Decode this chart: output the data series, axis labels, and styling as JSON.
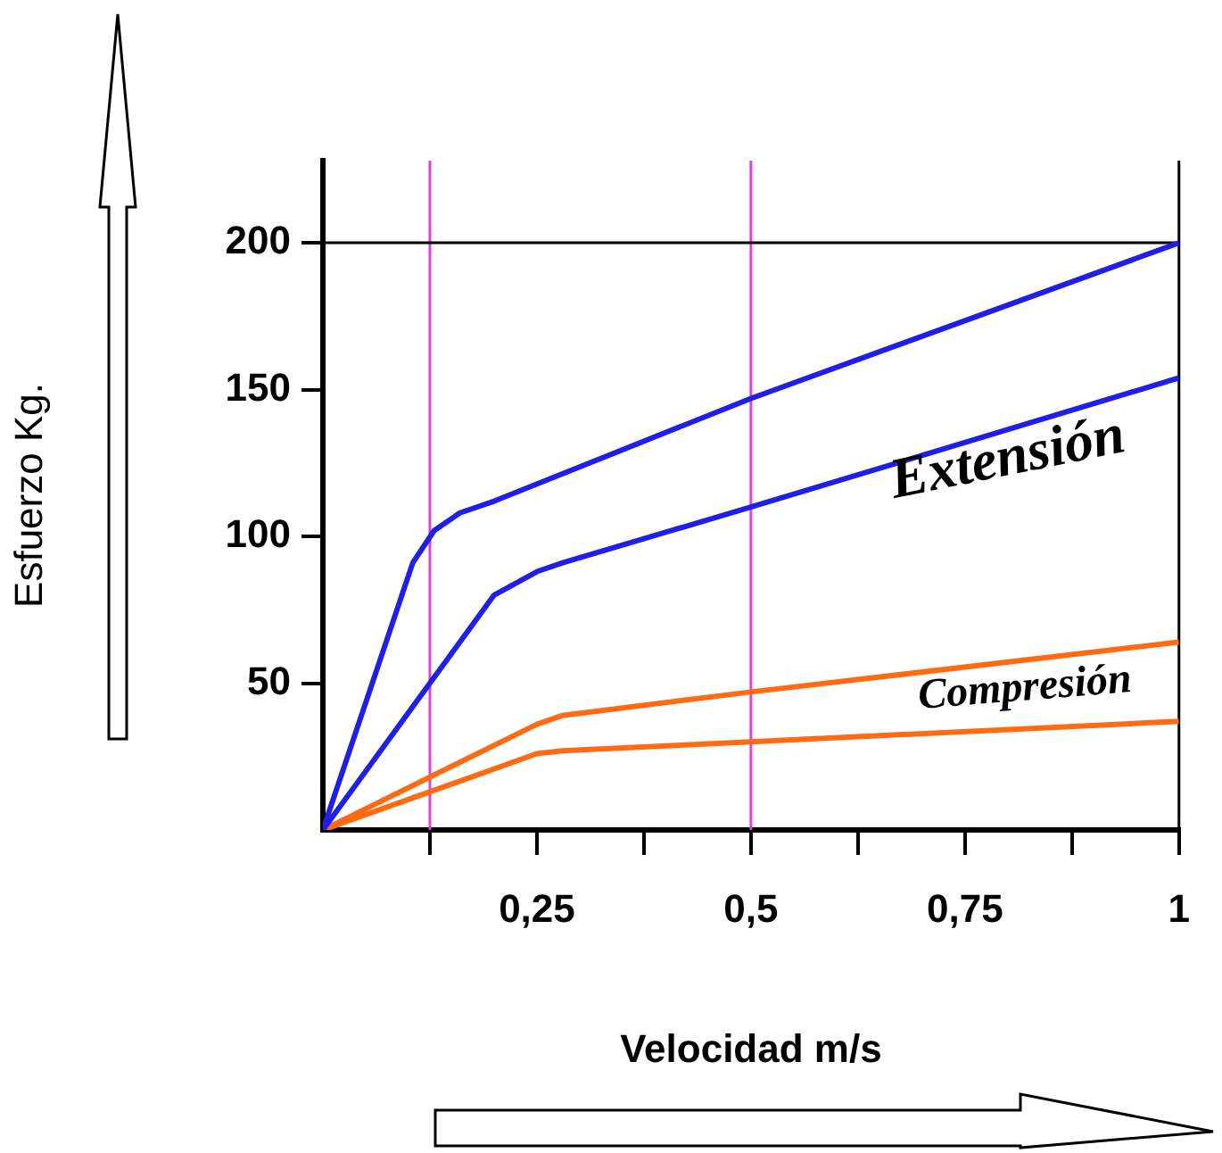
{
  "chart_data": {
    "type": "line",
    "xlabel": "Velocidad m/s",
    "ylabel": "Esfuerzo Kg.",
    "xlim": [
      0,
      1
    ],
    "ylim": [
      0,
      228
    ],
    "xticks": [
      {
        "value": 0.125,
        "label": null
      },
      {
        "value": 0.25,
        "label": "0,25"
      },
      {
        "value": 0.375,
        "label": null
      },
      {
        "value": 0.5,
        "label": "0,5"
      },
      {
        "value": 0.625,
        "label": null
      },
      {
        "value": 0.75,
        "label": "0,75"
      },
      {
        "value": 0.875,
        "label": null
      },
      1
    ],
    "yticks": [
      50,
      100,
      150,
      200
    ],
    "grid": false,
    "legend": false,
    "series": [
      {
        "color": "#1f1fe8",
        "x": [
          0,
          0.105,
          0.13,
          0.16,
          0.2,
          0.5,
          1
        ],
        "values": [
          0,
          91,
          102,
          108,
          112,
          147,
          200
        ]
      },
      {
        "color": "#1f1fe8",
        "x": [
          0,
          0.2,
          0.25,
          0.28,
          0.5,
          1
        ],
        "values": [
          0,
          80,
          88,
          91,
          110,
          154
        ]
      },
      {
        "color": "#ff6a13",
        "x": [
          0,
          0.25,
          0.28,
          0.5,
          1
        ],
        "values": [
          0,
          36,
          39,
          47,
          64
        ]
      },
      {
        "color": "#ff6a13",
        "x": [
          0,
          0.25,
          0.28,
          0.5,
          1
        ],
        "values": [
          0,
          26,
          27,
          30,
          37
        ]
      }
    ],
    "ref_lines": [
      {
        "axis": "x",
        "value": 0.125,
        "color": "#e040e0"
      },
      {
        "axis": "x",
        "value": 0.5,
        "color": "#e040e0"
      },
      {
        "axis": "y",
        "value": 200,
        "color": "#000000"
      },
      {
        "axis": "x",
        "value": 1,
        "color": "#000000"
      }
    ],
    "annotations": [
      "Extensión",
      "Compresión"
    ]
  }
}
